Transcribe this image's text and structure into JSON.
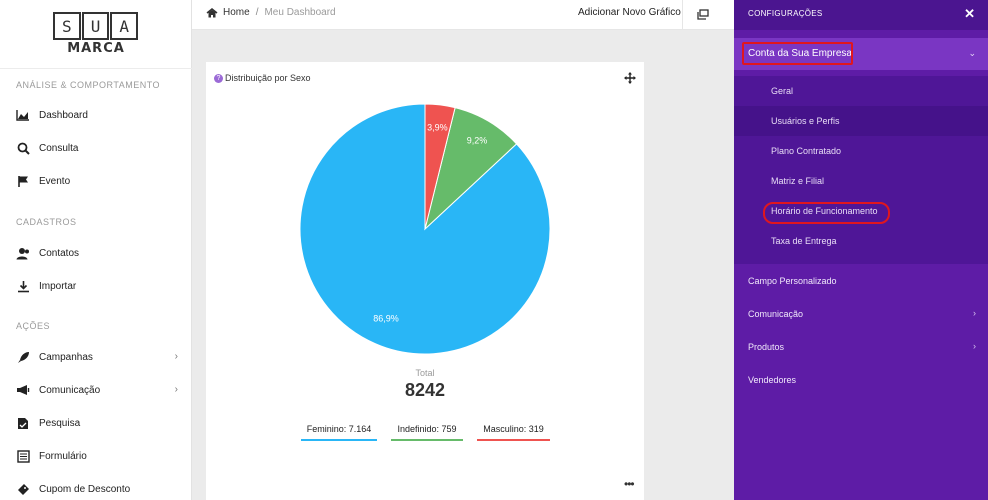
{
  "logo": {
    "letters": [
      "S",
      "U",
      "A"
    ],
    "brand": "MARCA"
  },
  "sidebar": {
    "sections": [
      {
        "title": "ANÁLISE & COMPORTAMENTO",
        "items": [
          {
            "label": "Dashboard",
            "icon": "area-chart-icon"
          },
          {
            "label": "Consulta",
            "icon": "search-icon"
          },
          {
            "label": "Evento",
            "icon": "flag-icon"
          }
        ]
      },
      {
        "title": "CADASTROS",
        "items": [
          {
            "label": "Contatos",
            "icon": "contacts-icon"
          },
          {
            "label": "Importar",
            "icon": "download-icon"
          }
        ]
      },
      {
        "title": "AÇÕES",
        "items": [
          {
            "label": "Campanhas",
            "icon": "rocket-icon",
            "has_submenu": true
          },
          {
            "label": "Comunicação",
            "icon": "megaphone-icon",
            "has_submenu": true
          },
          {
            "label": "Pesquisa",
            "icon": "survey-icon"
          },
          {
            "label": "Formulário",
            "icon": "form-icon"
          },
          {
            "label": "Cupom de Desconto",
            "icon": "ticket-icon"
          }
        ]
      }
    ]
  },
  "topbar": {
    "breadcrumb": {
      "home": "Home",
      "separator": "/",
      "current": "Meu Dashboard"
    },
    "add_chart": "Adicionar Novo Gráfico"
  },
  "card": {
    "title": "Distribuição por Sexo",
    "total_label": "Total",
    "total_value": "8242",
    "legend": [
      {
        "label": "Feminino: 7.164",
        "color": "#29b6f6"
      },
      {
        "label": "Indefinido: 759",
        "color": "#66bb6a"
      },
      {
        "label": "Masculino: 319",
        "color": "#ef5350"
      }
    ]
  },
  "chart_data": {
    "type": "pie",
    "title": "Distribuição por Sexo",
    "categories": [
      "Feminino",
      "Indefinido",
      "Masculino"
    ],
    "values": [
      7164,
      759,
      319
    ],
    "labels": [
      "86,9%",
      "9,2%",
      "3,9%"
    ],
    "colors": [
      "#29b6f6",
      "#66bb6a",
      "#ef5350"
    ],
    "total": 8242,
    "legend": "bottom"
  },
  "panel": {
    "title": "CONFIGURAÇÕES",
    "close_icon": "close-icon",
    "company": {
      "label": "Conta da Sua Empresa",
      "expanded": true
    },
    "submenu": [
      "Geral",
      "Usuários e Perfis",
      "Plano Contratado",
      "Matriz e Filial",
      "Horário de Funcionamento",
      "Taxa de Entrega"
    ],
    "items": [
      {
        "label": "Campo Personalizado",
        "has_submenu": false
      },
      {
        "label": "Comunicação",
        "has_submenu": true
      },
      {
        "label": "Produtos",
        "has_submenu": true
      },
      {
        "label": "Vendedores",
        "has_submenu": false
      }
    ],
    "highlight_color": "#e0161e"
  }
}
